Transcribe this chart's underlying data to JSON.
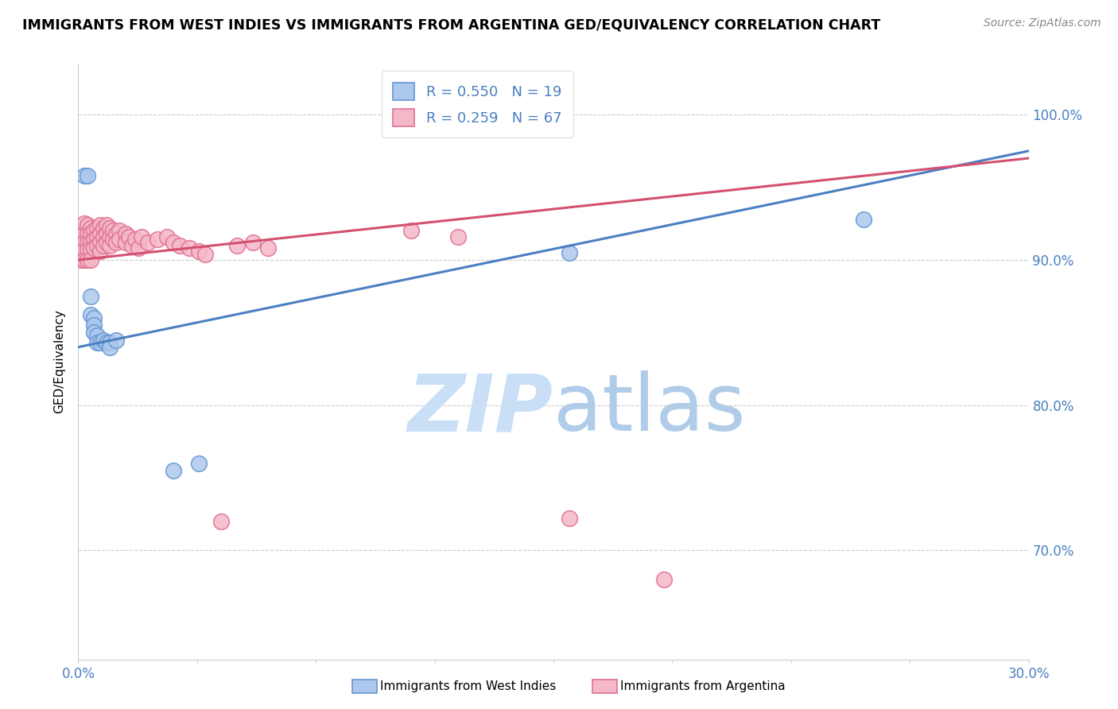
{
  "title": "IMMIGRANTS FROM WEST INDIES VS IMMIGRANTS FROM ARGENTINA GED/EQUIVALENCY CORRELATION CHART",
  "source": "Source: ZipAtlas.com",
  "ylabel_label": "GED/Equivalency",
  "legend_label1": "Immigrants from West Indies",
  "legend_label2": "Immigrants from Argentina",
  "R1": 0.55,
  "N1": 19,
  "R2": 0.259,
  "N2": 67,
  "blue_color": "#adc8ed",
  "blue_edge": "#6496d2",
  "pink_color": "#f5b8c8",
  "pink_edge": "#e07090",
  "blue_line_color": "#4a7fc1",
  "pink_line_color": "#d45070",
  "watermark_zip_color": "#c8dff5",
  "watermark_atlas_color": "#b0cce8",
  "x_min": 0.0,
  "x_max": 0.3,
  "y_min": 0.625,
  "y_max": 1.035,
  "y_ticks": [
    0.7,
    0.8,
    0.9,
    1.0
  ],
  "blue_scatter_x": [
    0.002,
    0.003,
    0.004,
    0.004,
    0.005,
    0.005,
    0.005,
    0.006,
    0.006,
    0.007,
    0.008,
    0.009,
    0.01,
    0.01,
    0.012,
    0.03,
    0.038,
    0.155,
    0.248
  ],
  "blue_scatter_y": [
    0.958,
    0.958,
    0.875,
    0.862,
    0.86,
    0.855,
    0.85,
    0.848,
    0.843,
    0.843,
    0.845,
    0.843,
    0.843,
    0.84,
    0.845,
    0.755,
    0.76,
    0.905,
    0.928
  ],
  "pink_scatter_x": [
    0.001,
    0.001,
    0.001,
    0.001,
    0.002,
    0.002,
    0.002,
    0.002,
    0.002,
    0.003,
    0.003,
    0.003,
    0.003,
    0.003,
    0.004,
    0.004,
    0.004,
    0.004,
    0.004,
    0.005,
    0.005,
    0.005,
    0.006,
    0.006,
    0.006,
    0.007,
    0.007,
    0.007,
    0.007,
    0.008,
    0.008,
    0.008,
    0.009,
    0.009,
    0.009,
    0.01,
    0.01,
    0.01,
    0.011,
    0.011,
    0.012,
    0.012,
    0.013,
    0.013,
    0.015,
    0.015,
    0.016,
    0.017,
    0.018,
    0.019,
    0.02,
    0.022,
    0.025,
    0.028,
    0.03,
    0.032,
    0.035,
    0.038,
    0.04,
    0.045,
    0.05,
    0.055,
    0.06,
    0.105,
    0.12,
    0.155,
    0.185
  ],
  "pink_scatter_y": [
    0.92,
    0.912,
    0.907,
    0.9,
    0.925,
    0.918,
    0.912,
    0.907,
    0.9,
    0.924,
    0.918,
    0.912,
    0.907,
    0.9,
    0.922,
    0.918,
    0.912,
    0.907,
    0.9,
    0.92,
    0.914,
    0.908,
    0.922,
    0.916,
    0.91,
    0.924,
    0.918,
    0.912,
    0.906,
    0.922,
    0.916,
    0.91,
    0.924,
    0.918,
    0.912,
    0.922,
    0.916,
    0.91,
    0.92,
    0.914,
    0.918,
    0.912,
    0.92,
    0.914,
    0.918,
    0.912,
    0.916,
    0.91,
    0.914,
    0.908,
    0.916,
    0.912,
    0.914,
    0.916,
    0.912,
    0.91,
    0.908,
    0.906,
    0.904,
    0.72,
    0.91,
    0.912,
    0.908,
    0.92,
    0.916,
    0.722,
    0.68
  ],
  "blue_line_x0": 0.0,
  "blue_line_y0": 0.84,
  "blue_line_x1": 0.3,
  "blue_line_y1": 0.975,
  "pink_line_x0": 0.0,
  "pink_line_y0": 0.9,
  "pink_line_x1": 0.3,
  "pink_line_y1": 0.97
}
